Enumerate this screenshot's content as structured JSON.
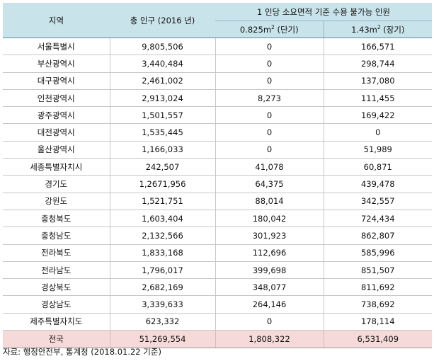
{
  "header": {
    "region": "지역",
    "population": "총 인구 (2016 년)",
    "capacity_group": "1 인당 소요면적 기준 수용 불가능 인원",
    "short_term_value": "0.825m",
    "short_term_exp": "2",
    "short_term_suffix": " (단기)",
    "long_term_value": "1.43m",
    "long_term_exp": "2",
    "long_term_suffix": " (장기)"
  },
  "rows": [
    {
      "region": "서울특별시",
      "population": "9,805,506",
      "short": "0",
      "long": "166,571"
    },
    {
      "region": "부산광역시",
      "population": "3,440,484",
      "short": "0",
      "long": "298,744"
    },
    {
      "region": "대구광역시",
      "population": "2,461,002",
      "short": "0",
      "long": "137,080"
    },
    {
      "region": "인천광역시",
      "population": "2,913,024",
      "short": "8,273",
      "long": "111,455"
    },
    {
      "region": "광주광역시",
      "population": "1,501,557",
      "short": "0",
      "long": "169,422"
    },
    {
      "region": "대전광역시",
      "population": "1,535,445",
      "short": "0",
      "long": "0"
    },
    {
      "region": "울산광역시",
      "population": "1,166,033",
      "short": "0",
      "long": "51,989"
    },
    {
      "region": "세종특별자치시",
      "population": "242,507",
      "short": "41,078",
      "long": "60,871"
    },
    {
      "region": "경기도",
      "population": "1,2671,956",
      "short": "64,375",
      "long": "439,478"
    },
    {
      "region": "강원도",
      "population": "1,521,751",
      "short": "88,014",
      "long": "342,557"
    },
    {
      "region": "충청북도",
      "population": "1,603,404",
      "short": "180,042",
      "long": "724,434"
    },
    {
      "region": "충청남도",
      "population": "2,132,566",
      "short": "301,923",
      "long": "862,807"
    },
    {
      "region": "전라북도",
      "population": "1,833,168",
      "short": "112,696",
      "long": "585,996"
    },
    {
      "region": "전라남도",
      "population": "1,796,017",
      "short": "399,698",
      "long": "851,507"
    },
    {
      "region": "경상북도",
      "population": "2,682,169",
      "short": "348,077",
      "long": "811,692"
    },
    {
      "region": "경상남도",
      "population": "3,339,633",
      "short": "264,146",
      "long": "738,692"
    },
    {
      "region": "제주특별자치도",
      "population": "623,332",
      "short": "0",
      "long": "178,114"
    }
  ],
  "total": {
    "region": "전국",
    "population": "51,269,554",
    "short": "1,808,322",
    "long": "6,531,409"
  },
  "source": "자료: 행정안전부, 통계청 (2018.01.22 기준)",
  "colors": {
    "header_bg": "#c9e3ea",
    "total_bg": "#f6d9d9"
  }
}
